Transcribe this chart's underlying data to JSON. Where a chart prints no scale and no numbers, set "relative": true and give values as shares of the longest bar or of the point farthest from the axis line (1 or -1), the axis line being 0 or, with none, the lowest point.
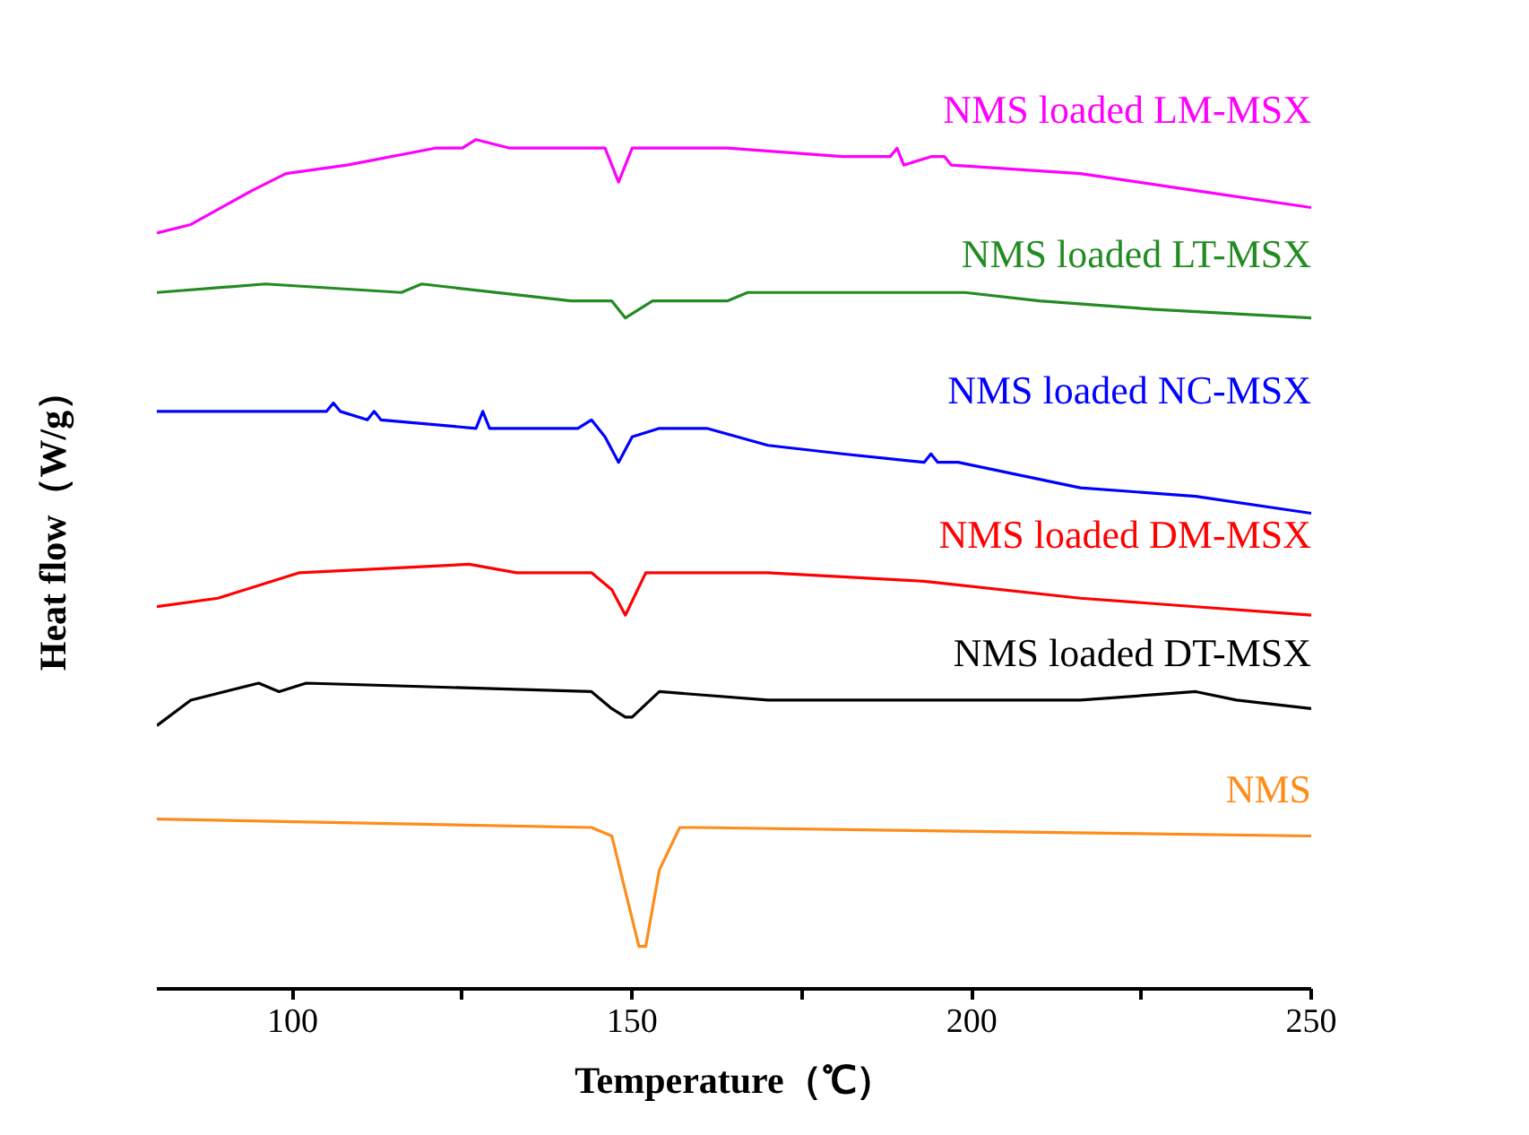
{
  "chart_data": {
    "type": "line",
    "relative": true,
    "xlabel": "Temperature（℃）",
    "ylabel": "Heat flow（W/g）",
    "xlim": [
      80,
      250
    ],
    "xticks": [
      100,
      {
        "value": 125,
        "label": null
      },
      150,
      {
        "value": 175,
        "label": null
      },
      200,
      {
        "value": 225,
        "label": null
      },
      250
    ],
    "grid": false,
    "marker": "none",
    "line_style": "solid",
    "series": [
      {
        "name": "NMS loaded LM-MSX",
        "color": "#ff00ff",
        "x": [
          80,
          85,
          94,
          99,
          108,
          121,
          125,
          127,
          132,
          138,
          146,
          148,
          150,
          164,
          181,
          188,
          189,
          190,
          194,
          196,
          197,
          216,
          233,
          250
        ],
        "values": [
          0.89,
          0.9,
          0.94,
          0.96,
          0.97,
          0.99,
          0.99,
          1.0,
          0.99,
          0.99,
          0.99,
          0.95,
          0.99,
          0.99,
          0.98,
          0.98,
          0.99,
          0.97,
          0.98,
          0.98,
          0.97,
          0.96,
          0.94,
          0.92
        ]
      },
      {
        "name": "NMS loaded LT-MSX",
        "color": "#228b22",
        "x": [
          80,
          96,
          116,
          119,
          141,
          147,
          149,
          153,
          164,
          167,
          176,
          199,
          210,
          227,
          250
        ],
        "values": [
          0.82,
          0.83,
          0.82,
          0.83,
          0.81,
          0.81,
          0.79,
          0.81,
          0.81,
          0.82,
          0.82,
          0.82,
          0.81,
          0.8,
          0.79
        ]
      },
      {
        "name": "NMS loaded NC-MSX",
        "color": "#0000ff",
        "x": [
          80,
          84,
          105,
          106,
          107,
          111,
          112,
          113,
          127,
          128,
          129,
          132,
          142,
          144,
          146,
          148,
          150,
          154,
          161,
          170,
          181,
          193,
          194,
          195,
          198,
          216,
          233,
          250
        ],
        "values": [
          0.68,
          0.68,
          0.68,
          0.69,
          0.68,
          0.67,
          0.68,
          0.67,
          0.66,
          0.68,
          0.66,
          0.66,
          0.66,
          0.67,
          0.65,
          0.62,
          0.65,
          0.66,
          0.66,
          0.64,
          0.63,
          0.62,
          0.63,
          0.62,
          0.62,
          0.59,
          0.58,
          0.56
        ]
      },
      {
        "name": "NMS loaded DM-MSX",
        "color": "#ff0000",
        "x": [
          80,
          89,
          101,
          126,
          133,
          144,
          147,
          149,
          152,
          170,
          193,
          216,
          233,
          250
        ],
        "values": [
          0.45,
          0.46,
          0.49,
          0.5,
          0.49,
          0.49,
          0.47,
          0.44,
          0.49,
          0.49,
          0.48,
          0.46,
          0.45,
          0.44
        ]
      },
      {
        "name": "NMS loaded DT-MSX",
        "color": "#000000",
        "x": [
          80,
          85,
          95,
          98,
          102,
          144,
          147,
          149,
          150,
          154,
          170,
          216,
          233,
          239,
          250
        ],
        "values": [
          0.31,
          0.34,
          0.36,
          0.35,
          0.36,
          0.35,
          0.33,
          0.32,
          0.32,
          0.35,
          0.34,
          0.34,
          0.35,
          0.34,
          0.33
        ]
      },
      {
        "name": "NMS",
        "color": "#ff8c1a",
        "x": [
          80,
          144,
          147,
          151,
          152,
          154,
          157,
          159.5,
          250
        ],
        "values": [
          0.2,
          0.19,
          0.18,
          0.05,
          0.05,
          0.14,
          0.19,
          0.19,
          0.18
        ]
      }
    ]
  }
}
